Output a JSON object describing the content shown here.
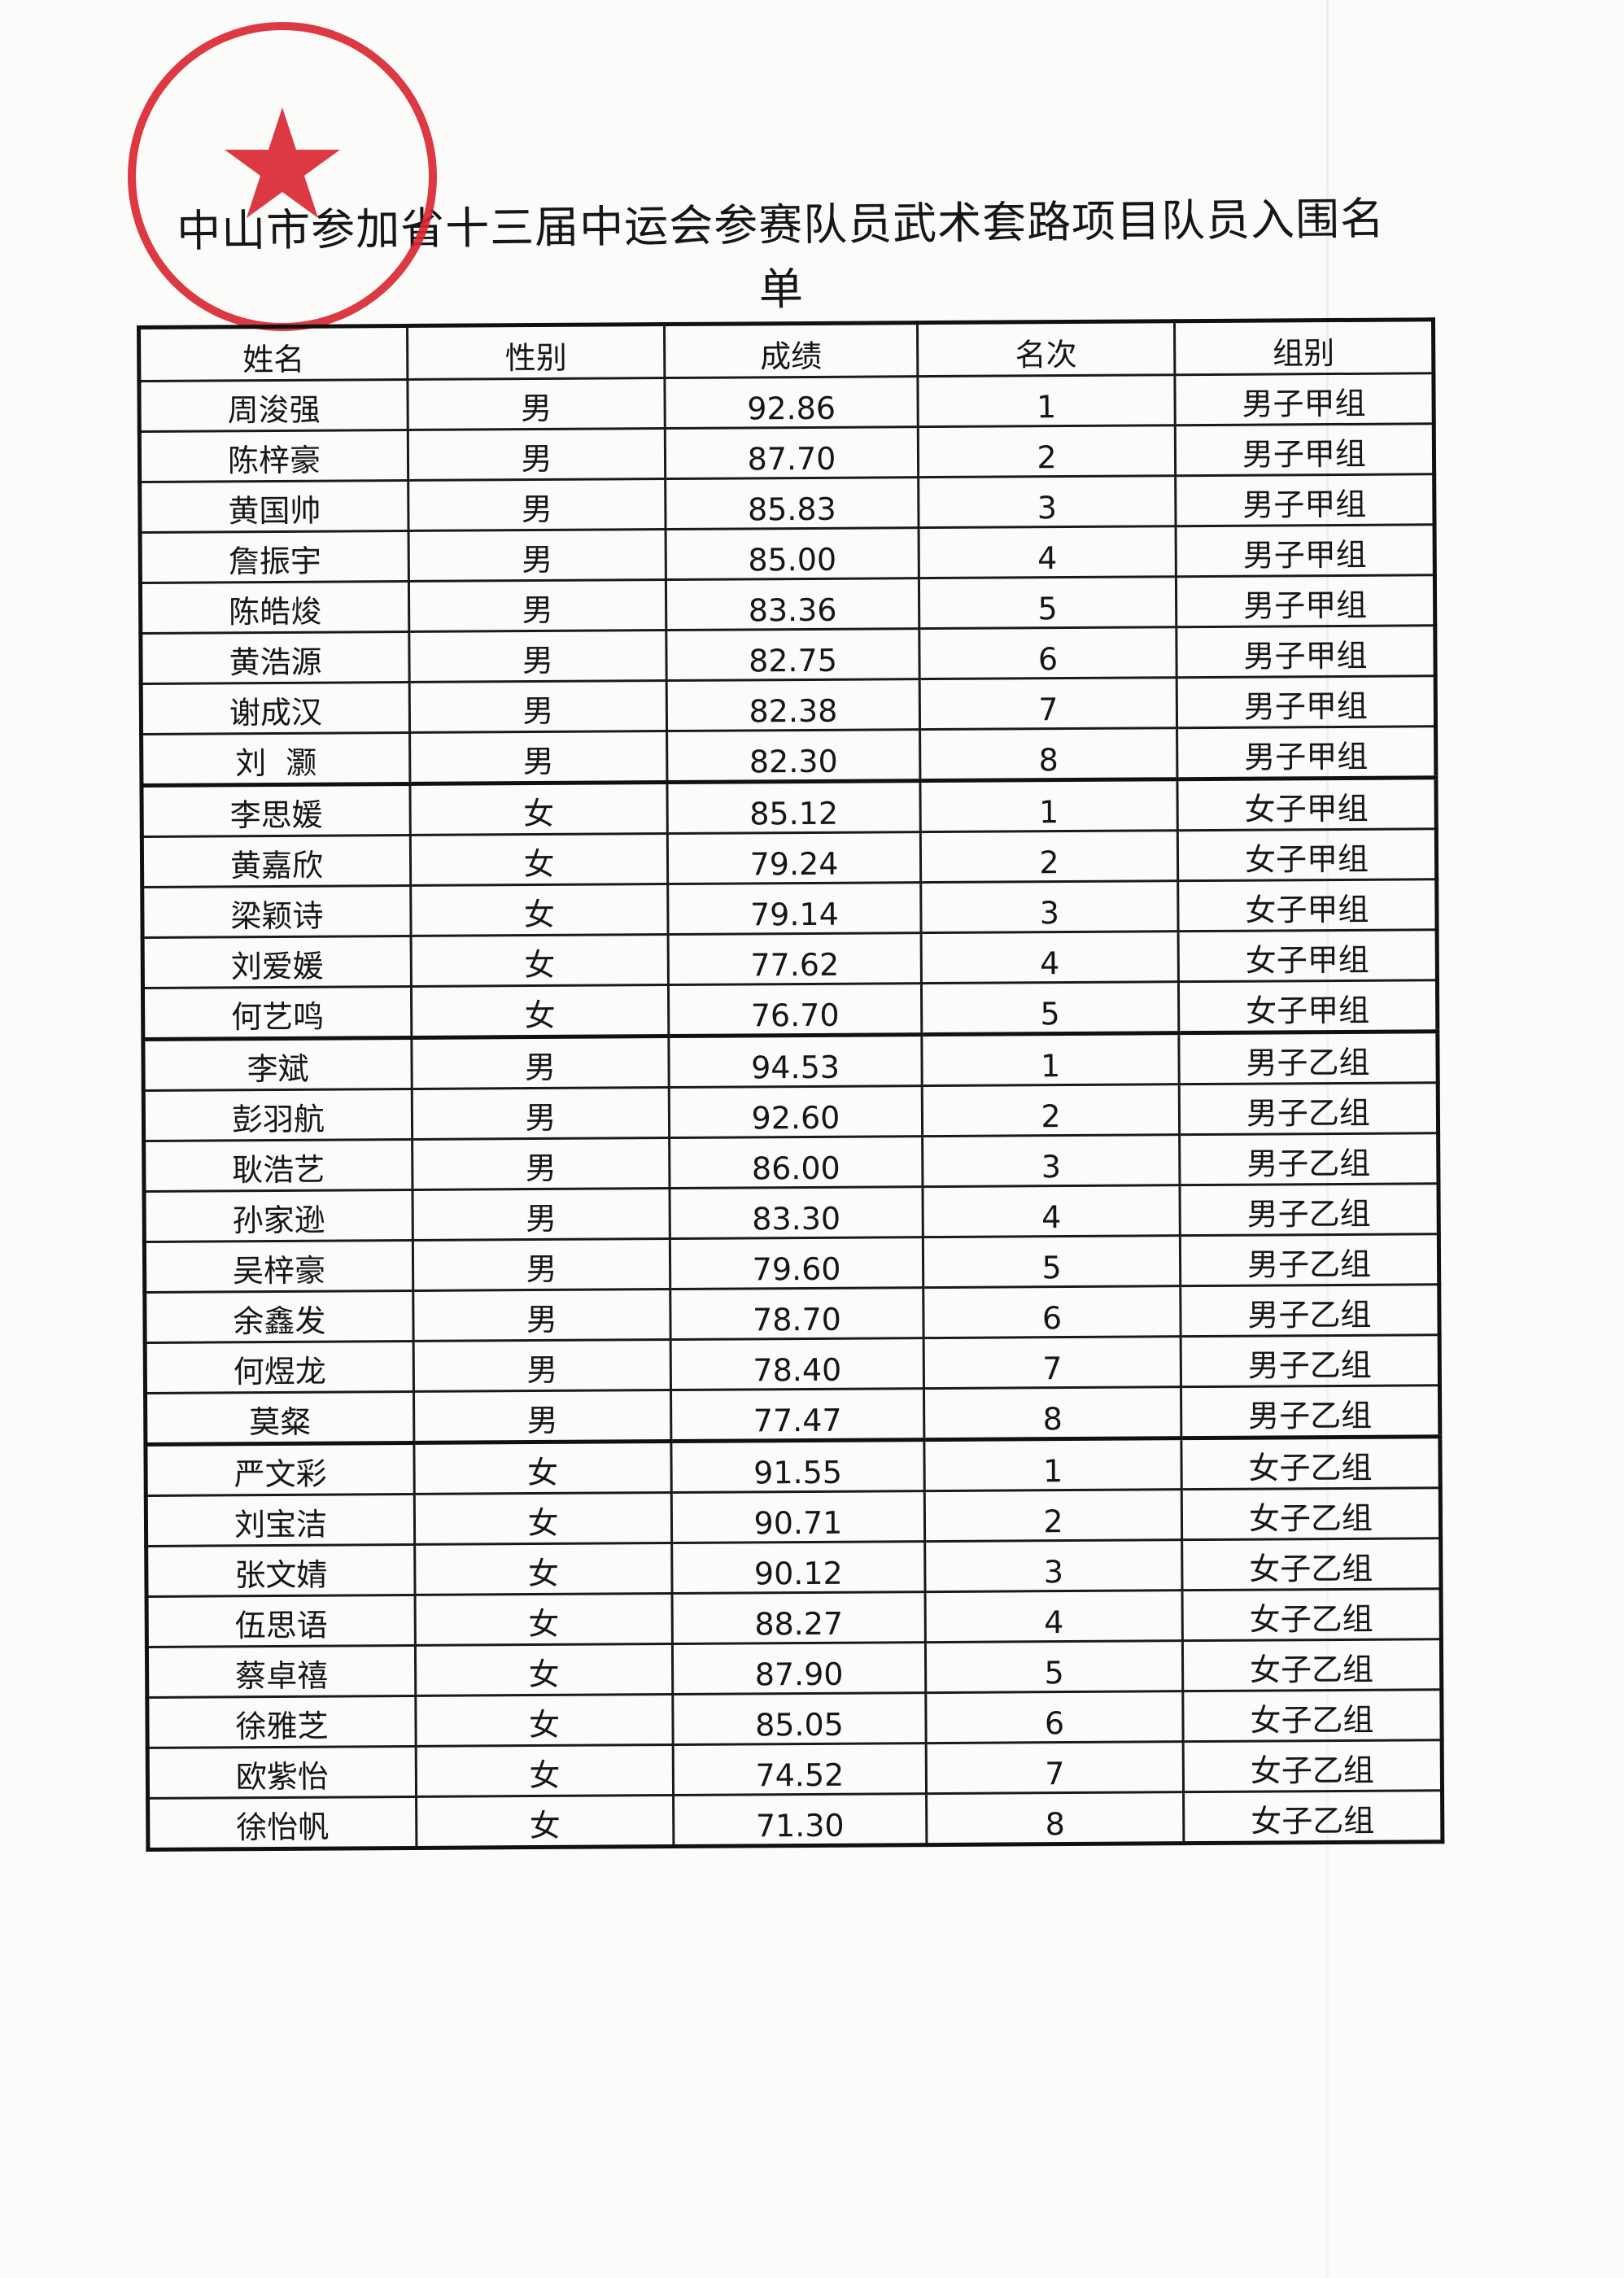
{
  "title": "中山市参加省十三届中运会参赛队员武术套路项目队员入围名单",
  "stamp": {
    "color": "#d9232e",
    "icon": "star-icon"
  },
  "table": {
    "headers": [
      "姓名",
      "性别",
      "成绩",
      "名次",
      "组别"
    ],
    "rows": [
      [
        "周浚强",
        "男",
        "92.86",
        "1",
        "男子甲组"
      ],
      [
        "陈梓豪",
        "男",
        "87.70",
        "2",
        "男子甲组"
      ],
      [
        "黄国帅",
        "男",
        "85.83",
        "3",
        "男子甲组"
      ],
      [
        "詹振宇",
        "男",
        "85.00",
        "4",
        "男子甲组"
      ],
      [
        "陈皓焌",
        "男",
        "83.36",
        "5",
        "男子甲组"
      ],
      [
        "黄浩源",
        "男",
        "82.75",
        "6",
        "男子甲组"
      ],
      [
        "谢成汉",
        "男",
        "82.38",
        "7",
        "男子甲组"
      ],
      [
        "刘  灏",
        "男",
        "82.30",
        "8",
        "男子甲组"
      ],
      [
        "李思媛",
        "女",
        "85.12",
        "1",
        "女子甲组"
      ],
      [
        "黄嘉欣",
        "女",
        "79.24",
        "2",
        "女子甲组"
      ],
      [
        "梁颖诗",
        "女",
        "79.14",
        "3",
        "女子甲组"
      ],
      [
        "刘爱媛",
        "女",
        "77.62",
        "4",
        "女子甲组"
      ],
      [
        "何艺鸣",
        "女",
        "76.70",
        "5",
        "女子甲组"
      ],
      [
        "李斌",
        "男",
        "94.53",
        "1",
        "男子乙组"
      ],
      [
        "彭羽航",
        "男",
        "92.60",
        "2",
        "男子乙组"
      ],
      [
        "耿浩艺",
        "男",
        "86.00",
        "3",
        "男子乙组"
      ],
      [
        "孙家逊",
        "男",
        "83.30",
        "4",
        "男子乙组"
      ],
      [
        "吴梓豪",
        "男",
        "79.60",
        "5",
        "男子乙组"
      ],
      [
        "余鑫发",
        "男",
        "78.70",
        "6",
        "男子乙组"
      ],
      [
        "何煜龙",
        "男",
        "78.40",
        "7",
        "男子乙组"
      ],
      [
        "莫粲",
        "男",
        "77.47",
        "8",
        "男子乙组"
      ],
      [
        "严文彩",
        "女",
        "91.55",
        "1",
        "女子乙组"
      ],
      [
        "刘宝洁",
        "女",
        "90.71",
        "2",
        "女子乙组"
      ],
      [
        "张文婧",
        "女",
        "90.12",
        "3",
        "女子乙组"
      ],
      [
        "伍思语",
        "女",
        "88.27",
        "4",
        "女子乙组"
      ],
      [
        "蔡卓禧",
        "女",
        "87.90",
        "5",
        "女子乙组"
      ],
      [
        "徐雅芝",
        "女",
        "85.05",
        "6",
        "女子乙组"
      ],
      [
        "欧紫怡",
        "女",
        "74.52",
        "7",
        "女子乙组"
      ],
      [
        "徐怡帆",
        "女",
        "71.30",
        "8",
        "女子乙组"
      ]
    ]
  }
}
